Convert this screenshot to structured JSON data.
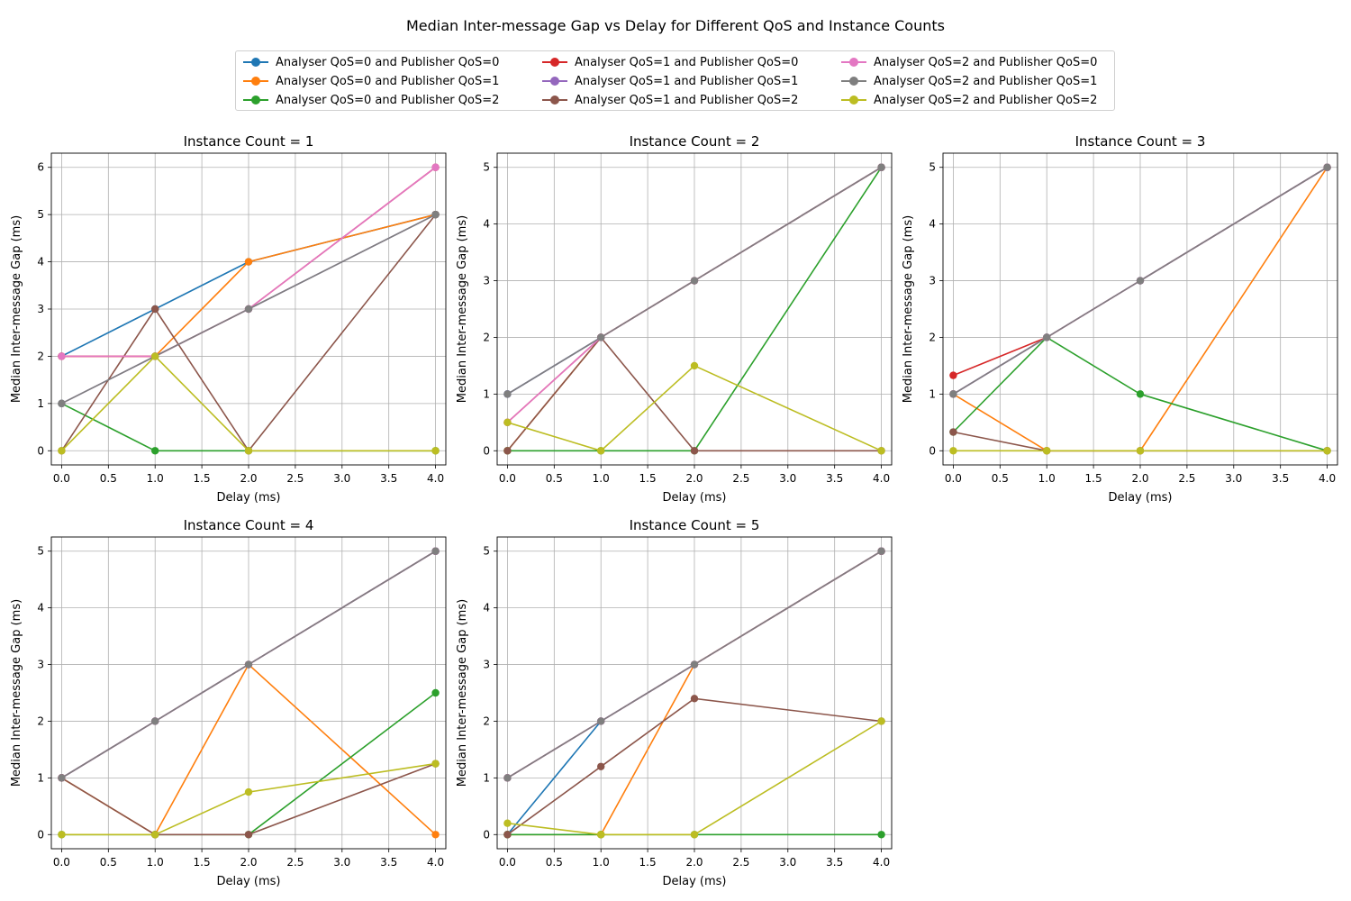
{
  "figure_title": "Median Inter-message Gap vs Delay for Different QoS and Instance Counts",
  "legend": [
    {
      "label": "Analyser QoS=0 and Publisher QoS=0",
      "color": "#1f77b4"
    },
    {
      "label": "Analyser QoS=0 and Publisher QoS=1",
      "color": "#ff7f0e"
    },
    {
      "label": "Analyser QoS=0 and Publisher QoS=2",
      "color": "#2ca02c"
    },
    {
      "label": "Analyser QoS=1 and Publisher QoS=0",
      "color": "#d62728"
    },
    {
      "label": "Analyser QoS=1 and Publisher QoS=1",
      "color": "#9467bd"
    },
    {
      "label": "Analyser QoS=1 and Publisher QoS=2",
      "color": "#8c564b"
    },
    {
      "label": "Analyser QoS=2 and Publisher QoS=0",
      "color": "#e377c2"
    },
    {
      "label": "Analyser QoS=2 and Publisher QoS=1",
      "color": "#7f7f7f"
    },
    {
      "label": "Analyser QoS=2 and Publisher QoS=2",
      "color": "#bcbd22"
    }
  ],
  "chart_data": [
    {
      "type": "line",
      "title": "Instance Count = 1",
      "xlabel": "Delay (ms)",
      "ylabel": "Median Inter-message Gap (ms)",
      "x": [
        0,
        1,
        2,
        4
      ],
      "xlim": [
        -0.11,
        4.11
      ],
      "ylim": [
        -0.3,
        6.3
      ],
      "xticks": [
        0.0,
        0.5,
        1.0,
        1.5,
        2.0,
        2.5,
        3.0,
        3.5,
        4.0
      ],
      "xtick_labels": [
        "0.0",
        "0.5",
        "1.0",
        "1.5",
        "2.0",
        "2.5",
        "3.0",
        "3.5",
        "4.0"
      ],
      "yticks": [
        0,
        1,
        2,
        3,
        4,
        5,
        6
      ],
      "ytick_labels": [
        "0",
        "1",
        "2",
        "3",
        "4",
        "5",
        "6"
      ],
      "grid": true,
      "series": [
        {
          "name": "Analyser QoS=0 and Publisher QoS=0",
          "color": "#1f77b4",
          "values": [
            2,
            3,
            4,
            5
          ]
        },
        {
          "name": "Analyser QoS=0 and Publisher QoS=1",
          "color": "#ff7f0e",
          "values": [
            2,
            2,
            4,
            5
          ]
        },
        {
          "name": "Analyser QoS=0 and Publisher QoS=2",
          "color": "#2ca02c",
          "values": [
            1,
            0,
            0,
            0
          ]
        },
        {
          "name": "Analyser QoS=1 and Publisher QoS=0",
          "color": "#d62728",
          "values": [
            2,
            2,
            3,
            6
          ]
        },
        {
          "name": "Analyser QoS=1 and Publisher QoS=1",
          "color": "#9467bd",
          "values": [
            1,
            2,
            3,
            5
          ]
        },
        {
          "name": "Analyser QoS=1 and Publisher QoS=2",
          "color": "#8c564b",
          "values": [
            0,
            3,
            0,
            5
          ]
        },
        {
          "name": "Analyser QoS=2 and Publisher QoS=0",
          "color": "#e377c2",
          "values": [
            2,
            2,
            3,
            6
          ]
        },
        {
          "name": "Analyser QoS=2 and Publisher QoS=1",
          "color": "#7f7f7f",
          "values": [
            1,
            2,
            3,
            5
          ]
        },
        {
          "name": "Analyser QoS=2 and Publisher QoS=2",
          "color": "#bcbd22",
          "values": [
            0,
            2,
            0,
            0
          ]
        }
      ]
    },
    {
      "type": "line",
      "title": "Instance Count = 2",
      "xlabel": "Delay (ms)",
      "ylabel": "Median Inter-message Gap (ms)",
      "x": [
        0,
        1,
        2,
        4
      ],
      "xlim": [
        -0.11,
        4.11
      ],
      "ylim": [
        -0.25,
        5.25
      ],
      "xticks": [
        0.0,
        0.5,
        1.0,
        1.5,
        2.0,
        2.5,
        3.0,
        3.5,
        4.0
      ],
      "xtick_labels": [
        "0.0",
        "0.5",
        "1.0",
        "1.5",
        "2.0",
        "2.5",
        "3.0",
        "3.5",
        "4.0"
      ],
      "yticks": [
        0,
        1,
        2,
        3,
        4,
        5
      ],
      "ytick_labels": [
        "0",
        "1",
        "2",
        "3",
        "4",
        "5"
      ],
      "grid": true,
      "series": [
        {
          "name": "Analyser QoS=0 and Publisher QoS=0",
          "color": "#1f77b4",
          "values": [
            1,
            2,
            3,
            5
          ]
        },
        {
          "name": "Analyser QoS=0 and Publisher QoS=1",
          "color": "#ff7f0e",
          "values": [
            0,
            2,
            3,
            5
          ]
        },
        {
          "name": "Analyser QoS=0 and Publisher QoS=2",
          "color": "#2ca02c",
          "values": [
            0,
            0,
            0,
            5
          ]
        },
        {
          "name": "Analyser QoS=1 and Publisher QoS=0",
          "color": "#d62728",
          "values": [
            0.5,
            2,
            3,
            5
          ]
        },
        {
          "name": "Analyser QoS=1 and Publisher QoS=1",
          "color": "#9467bd",
          "values": [
            1,
            2,
            3,
            5
          ]
        },
        {
          "name": "Analyser QoS=1 and Publisher QoS=2",
          "color": "#8c564b",
          "values": [
            0,
            2,
            0,
            0
          ]
        },
        {
          "name": "Analyser QoS=2 and Publisher QoS=0",
          "color": "#e377c2",
          "values": [
            0.5,
            2,
            3,
            5
          ]
        },
        {
          "name": "Analyser QoS=2 and Publisher QoS=1",
          "color": "#7f7f7f",
          "values": [
            1,
            2,
            3,
            5
          ]
        },
        {
          "name": "Analyser QoS=2 and Publisher QoS=2",
          "color": "#bcbd22",
          "values": [
            0.5,
            0,
            1.5,
            0
          ]
        }
      ]
    },
    {
      "type": "line",
      "title": "Instance Count = 3",
      "xlabel": "Delay (ms)",
      "ylabel": "Median Inter-message Gap (ms)",
      "x": [
        0,
        1,
        2,
        4
      ],
      "xlim": [
        -0.11,
        4.11
      ],
      "ylim": [
        -0.25,
        5.25
      ],
      "xticks": [
        0.0,
        0.5,
        1.0,
        1.5,
        2.0,
        2.5,
        3.0,
        3.5,
        4.0
      ],
      "xtick_labels": [
        "0.0",
        "0.5",
        "1.0",
        "1.5",
        "2.0",
        "2.5",
        "3.0",
        "3.5",
        "4.0"
      ],
      "yticks": [
        0,
        1,
        2,
        3,
        4,
        5
      ],
      "ytick_labels": [
        "0",
        "1",
        "2",
        "3",
        "4",
        "5"
      ],
      "grid": true,
      "series": [
        {
          "name": "Analyser QoS=0 and Publisher QoS=0",
          "color": "#1f77b4",
          "values": [
            1,
            2,
            3,
            5
          ]
        },
        {
          "name": "Analyser QoS=0 and Publisher QoS=1",
          "color": "#ff7f0e",
          "values": [
            1,
            0,
            0,
            5
          ]
        },
        {
          "name": "Analyser QoS=0 and Publisher QoS=2",
          "color": "#2ca02c",
          "values": [
            0.33,
            2,
            1,
            0
          ]
        },
        {
          "name": "Analyser QoS=1 and Publisher QoS=0",
          "color": "#d62728",
          "values": [
            1.33,
            2,
            3,
            5
          ]
        },
        {
          "name": "Analyser QoS=1 and Publisher QoS=1",
          "color": "#9467bd",
          "values": [
            1,
            2,
            3,
            5
          ]
        },
        {
          "name": "Analyser QoS=1 and Publisher QoS=2",
          "color": "#8c564b",
          "values": [
            0.33,
            0,
            0,
            0
          ]
        },
        {
          "name": "Analyser QoS=2 and Publisher QoS=0",
          "color": "#e377c2",
          "values": [
            1,
            2,
            3,
            5
          ]
        },
        {
          "name": "Analyser QoS=2 and Publisher QoS=1",
          "color": "#7f7f7f",
          "values": [
            1,
            2,
            3,
            5
          ]
        },
        {
          "name": "Analyser QoS=2 and Publisher QoS=2",
          "color": "#bcbd22",
          "values": [
            0,
            0,
            0,
            0
          ]
        }
      ]
    },
    {
      "type": "line",
      "title": "Instance Count = 4",
      "xlabel": "Delay (ms)",
      "ylabel": "Median Inter-message Gap (ms)",
      "x": [
        0,
        1,
        2,
        4
      ],
      "xlim": [
        -0.11,
        4.11
      ],
      "ylim": [
        -0.25,
        5.25
      ],
      "xticks": [
        0.0,
        0.5,
        1.0,
        1.5,
        2.0,
        2.5,
        3.0,
        3.5,
        4.0
      ],
      "xtick_labels": [
        "0.0",
        "0.5",
        "1.0",
        "1.5",
        "2.0",
        "2.5",
        "3.0",
        "3.5",
        "4.0"
      ],
      "yticks": [
        0,
        1,
        2,
        3,
        4,
        5
      ],
      "ytick_labels": [
        "0",
        "1",
        "2",
        "3",
        "4",
        "5"
      ],
      "grid": true,
      "series": [
        {
          "name": "Analyser QoS=0 and Publisher QoS=0",
          "color": "#1f77b4",
          "values": [
            1,
            2,
            3,
            5
          ]
        },
        {
          "name": "Analyser QoS=0 and Publisher QoS=1",
          "color": "#ff7f0e",
          "values": [
            1,
            0,
            3,
            0
          ]
        },
        {
          "name": "Analyser QoS=0 and Publisher QoS=2",
          "color": "#2ca02c",
          "values": [
            0,
            0,
            0,
            2.5
          ]
        },
        {
          "name": "Analyser QoS=1 and Publisher QoS=0",
          "color": "#d62728",
          "values": [
            1,
            2,
            3,
            5
          ]
        },
        {
          "name": "Analyser QoS=1 and Publisher QoS=1",
          "color": "#9467bd",
          "values": [
            1,
            2,
            3,
            5
          ]
        },
        {
          "name": "Analyser QoS=1 and Publisher QoS=2",
          "color": "#8c564b",
          "values": [
            1,
            0,
            0,
            1.25
          ]
        },
        {
          "name": "Analyser QoS=2 and Publisher QoS=0",
          "color": "#e377c2",
          "values": [
            1,
            2,
            3,
            5
          ]
        },
        {
          "name": "Analyser QoS=2 and Publisher QoS=1",
          "color": "#7f7f7f",
          "values": [
            1,
            2,
            3,
            5
          ]
        },
        {
          "name": "Analyser QoS=2 and Publisher QoS=2",
          "color": "#bcbd22",
          "values": [
            0,
            0,
            0.75,
            1.25
          ]
        }
      ]
    },
    {
      "type": "line",
      "title": "Instance Count = 5",
      "xlabel": "Delay (ms)",
      "ylabel": "Median Inter-message Gap (ms)",
      "x": [
        0,
        1,
        2,
        4
      ],
      "xlim": [
        -0.11,
        4.11
      ],
      "ylim": [
        -0.25,
        5.25
      ],
      "xticks": [
        0.0,
        0.5,
        1.0,
        1.5,
        2.0,
        2.5,
        3.0,
        3.5,
        4.0
      ],
      "xtick_labels": [
        "0.0",
        "0.5",
        "1.0",
        "1.5",
        "2.0",
        "2.5",
        "3.0",
        "3.5",
        "4.0"
      ],
      "yticks": [
        0,
        1,
        2,
        3,
        4,
        5
      ],
      "ytick_labels": [
        "0",
        "1",
        "2",
        "3",
        "4",
        "5"
      ],
      "grid": true,
      "series": [
        {
          "name": "Analyser QoS=0 and Publisher QoS=0",
          "color": "#1f77b4",
          "values": [
            0,
            2,
            3,
            5
          ]
        },
        {
          "name": "Analyser QoS=0 and Publisher QoS=1",
          "color": "#ff7f0e",
          "values": [
            0,
            0,
            3,
            5
          ]
        },
        {
          "name": "Analyser QoS=0 and Publisher QoS=2",
          "color": "#2ca02c",
          "values": [
            0,
            0,
            0,
            0
          ]
        },
        {
          "name": "Analyser QoS=1 and Publisher QoS=0",
          "color": "#d62728",
          "values": [
            1,
            2,
            3,
            5
          ]
        },
        {
          "name": "Analyser QoS=1 and Publisher QoS=1",
          "color": "#9467bd",
          "values": [
            1,
            2,
            3,
            5
          ]
        },
        {
          "name": "Analyser QoS=1 and Publisher QoS=2",
          "color": "#8c564b",
          "values": [
            0,
            1.2,
            2.4,
            2
          ]
        },
        {
          "name": "Analyser QoS=2 and Publisher QoS=0",
          "color": "#e377c2",
          "values": [
            1,
            2,
            3,
            5
          ]
        },
        {
          "name": "Analyser QoS=2 and Publisher QoS=1",
          "color": "#7f7f7f",
          "values": [
            1,
            2,
            3,
            5
          ]
        },
        {
          "name": "Analyser QoS=2 and Publisher QoS=2",
          "color": "#bcbd22",
          "values": [
            0.2,
            0,
            0,
            2
          ]
        }
      ]
    }
  ]
}
